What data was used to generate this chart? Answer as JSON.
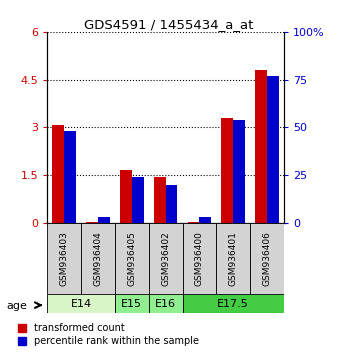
{
  "title": "GDS4591 / 1455434_a_at",
  "samples": [
    "GSM936403",
    "GSM936404",
    "GSM936405",
    "GSM936402",
    "GSM936400",
    "GSM936401",
    "GSM936406"
  ],
  "transformed_counts": [
    3.07,
    0.02,
    1.65,
    1.45,
    0.02,
    3.3,
    4.8
  ],
  "percentile_ranks": [
    48,
    3,
    24,
    20,
    3,
    54,
    77
  ],
  "age_groups": [
    {
      "label": "E14",
      "start": 0,
      "end": 2,
      "color": "#d8f5c8"
    },
    {
      "label": "E15",
      "start": 2,
      "end": 3,
      "color": "#90ee90"
    },
    {
      "label": "E16",
      "start": 3,
      "end": 4,
      "color": "#90ee90"
    },
    {
      "label": "E17.5",
      "start": 4,
      "end": 7,
      "color": "#44cc44"
    }
  ],
  "ylim_left": [
    0,
    6
  ],
  "ylim_right": [
    0,
    100
  ],
  "yticks_left": [
    0,
    1.5,
    3.0,
    4.5,
    6.0
  ],
  "yticks_right": [
    0,
    25,
    50,
    75,
    100
  ],
  "ytick_labels_left": [
    "0",
    "1.5",
    "3",
    "4.5",
    "6"
  ],
  "ytick_labels_right": [
    "0",
    "25",
    "50",
    "75",
    "100%"
  ],
  "bar_color_red": "#cc0000",
  "bar_color_blue": "#0000cc",
  "bar_width": 0.35,
  "bg_color": "#ffffff",
  "sample_bg_color": "#d3d3d3",
  "legend_red": "transformed count",
  "legend_blue": "percentile rank within the sample",
  "age_label": "age",
  "left_tick_color": "#cc0000",
  "right_tick_color": "#0000cc"
}
